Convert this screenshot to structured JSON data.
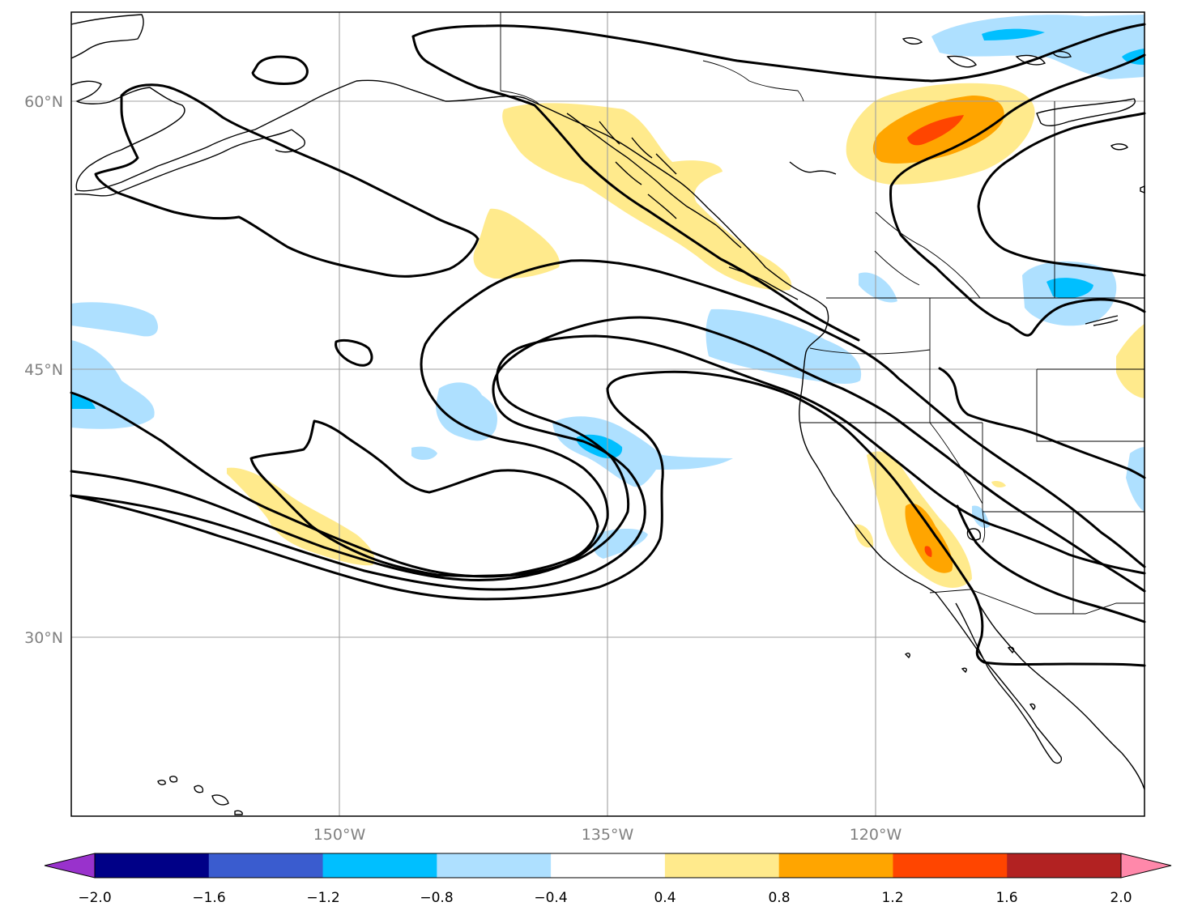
{
  "map": {
    "lat_labels": [
      "60°N",
      "45°N",
      "30°N"
    ],
    "lon_labels": [
      "150°W",
      "135°W",
      "120°W"
    ]
  },
  "colorbar": {
    "ticks": [
      "−2.0",
      "−1.6",
      "−1.2",
      "−0.8",
      "−0.4",
      "0.4",
      "0.8",
      "1.2",
      "1.6",
      "2.0"
    ],
    "colors": [
      "#000087",
      "#3a5ccf",
      "#00bfff",
      "#aee0ff",
      "#ffffff",
      "#ffea8c",
      "#ffa500",
      "#ff4500",
      "#b22222"
    ],
    "under_color": "#9932cc",
    "over_color": "#ff88aa"
  },
  "colors": {
    "light_blue": "#aee0ff",
    "blue": "#00bfff",
    "yellow": "#ffea8c",
    "orange": "#ffa500",
    "red_orange": "#ff4500"
  }
}
